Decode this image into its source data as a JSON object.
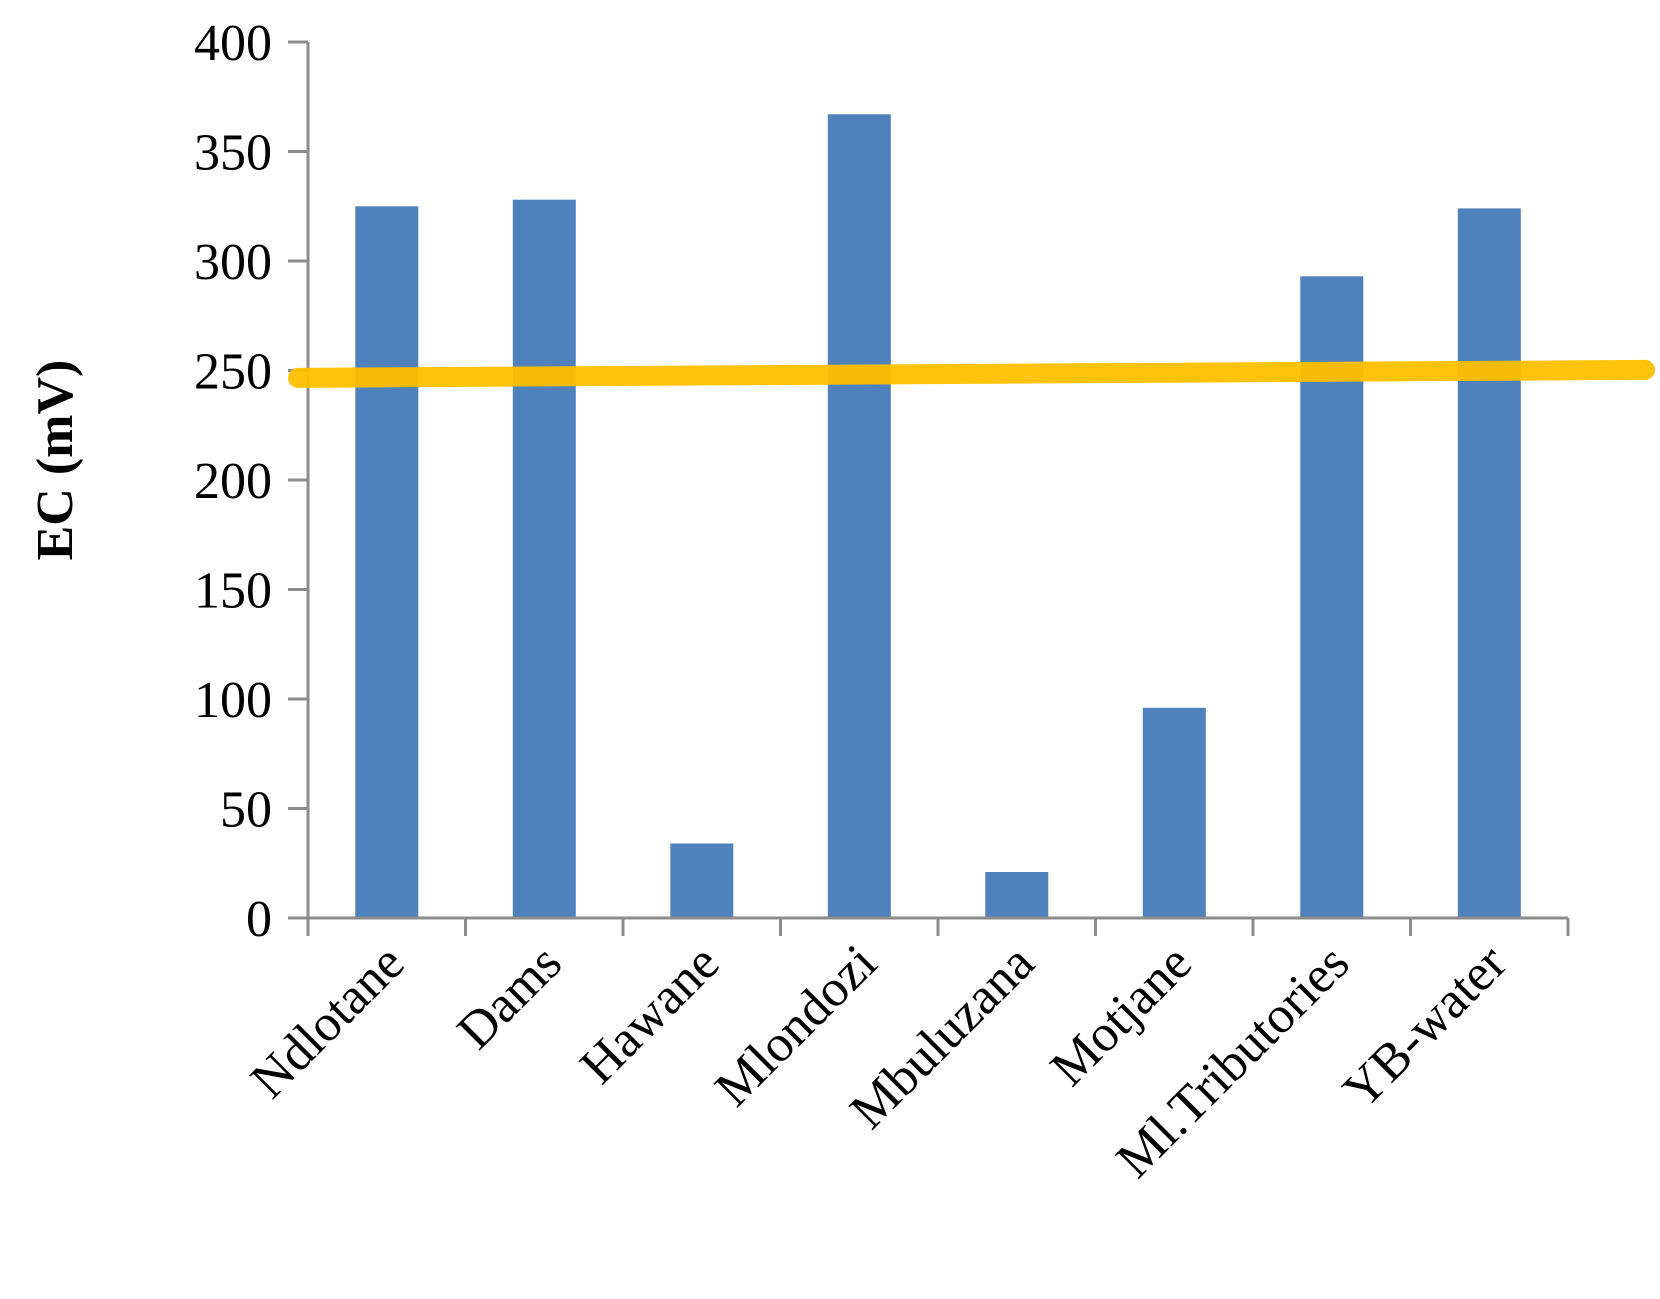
{
  "chart_data": {
    "type": "bar",
    "title": "",
    "xlabel": "",
    "ylabel": "EC (mV)",
    "categories": [
      "Ndlotane",
      "Dams",
      "Hawane",
      "Mlondozi",
      "Mbuluzana",
      "Motjane",
      "Ml.Tributories",
      "YB-water"
    ],
    "values": [
      325,
      328,
      34,
      367,
      21,
      96,
      293,
      324
    ],
    "ylim": [
      0,
      400
    ],
    "yticks": [
      "0",
      "50",
      "100",
      "150",
      "200",
      "250",
      "300",
      "350",
      "400"
    ],
    "grid": false,
    "legend": "none",
    "bar_color": "#4F81BD",
    "axis_color": "#8C8C8C",
    "reference_line": {
      "value": 248,
      "color": "#FFC000"
    }
  }
}
